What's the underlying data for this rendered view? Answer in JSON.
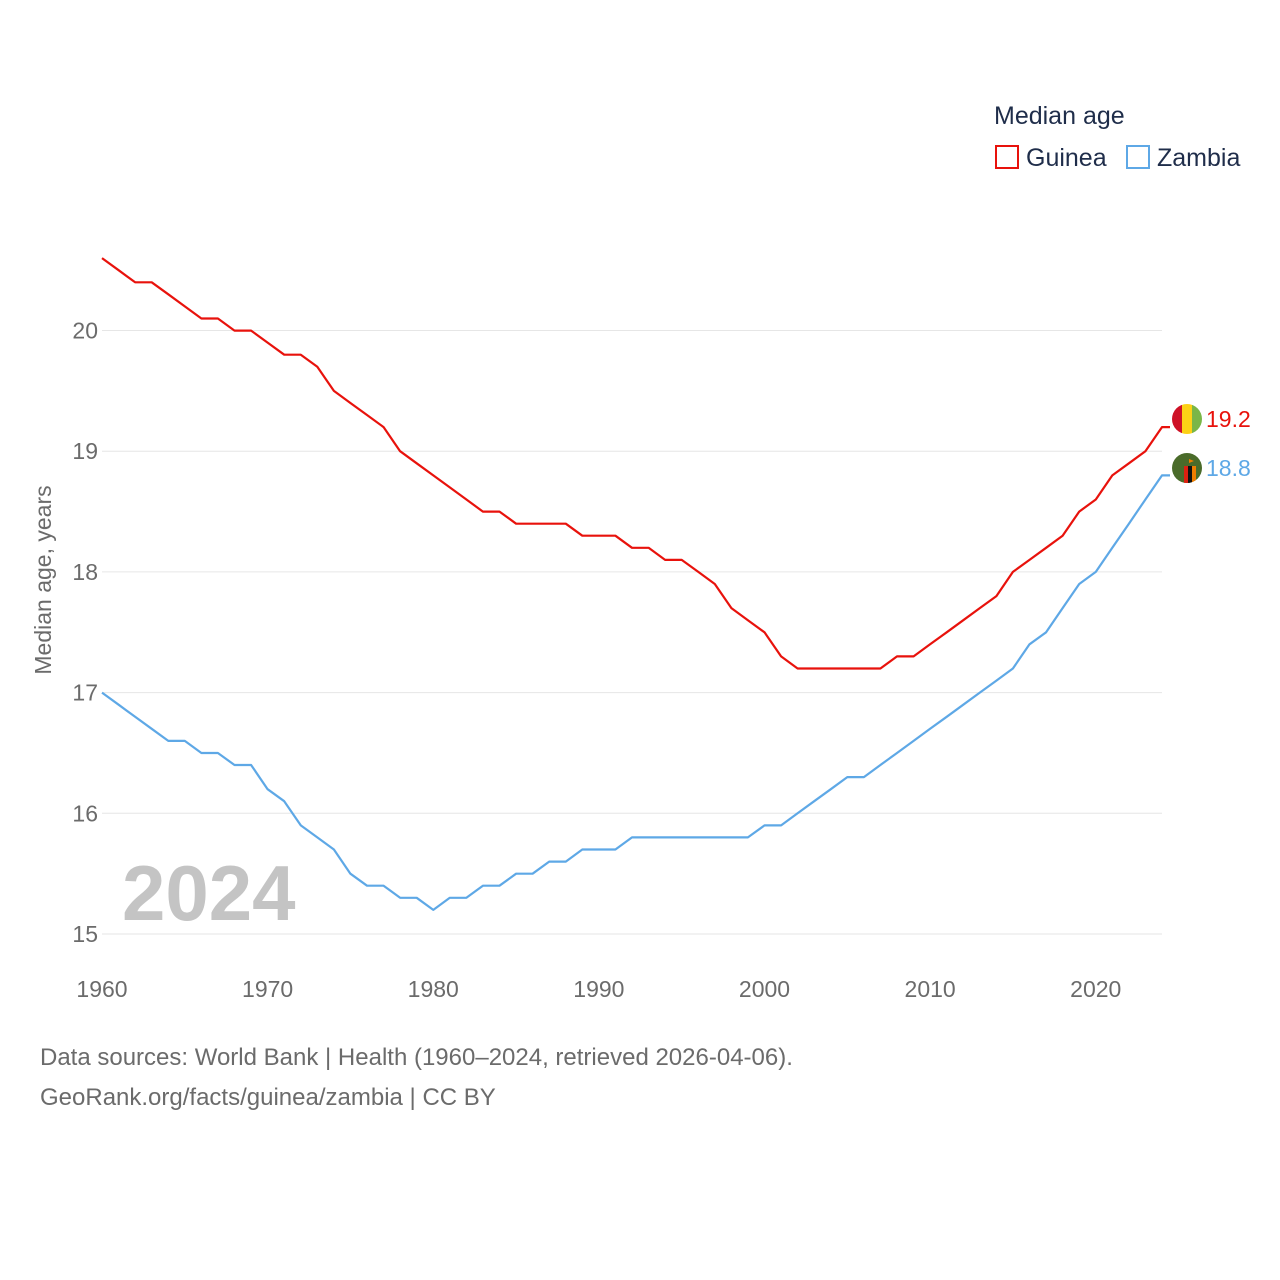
{
  "chart_data": {
    "type": "line",
    "ylabel": "Median age, years",
    "xlabel": "",
    "legend_title": "Median age",
    "legend_position": "top-right",
    "watermark_year": "2024",
    "xlim": [
      1960,
      2024
    ],
    "ylim": [
      15,
      20.8
    ],
    "x_ticks": [
      1960,
      1970,
      1980,
      1990,
      2000,
      2010,
      2020
    ],
    "y_ticks": [
      15,
      16,
      17,
      18,
      19,
      20
    ],
    "x": [
      1960,
      1961,
      1962,
      1963,
      1964,
      1965,
      1966,
      1967,
      1968,
      1969,
      1970,
      1971,
      1972,
      1973,
      1974,
      1975,
      1976,
      1977,
      1978,
      1979,
      1980,
      1981,
      1982,
      1983,
      1984,
      1985,
      1986,
      1987,
      1988,
      1989,
      1990,
      1991,
      1992,
      1993,
      1994,
      1995,
      1996,
      1997,
      1998,
      1999,
      2000,
      2001,
      2002,
      2003,
      2004,
      2005,
      2006,
      2007,
      2008,
      2009,
      2010,
      2011,
      2012,
      2013,
      2014,
      2015,
      2016,
      2017,
      2018,
      2019,
      2020,
      2021,
      2022,
      2023,
      2024
    ],
    "series": [
      {
        "name": "Guinea",
        "color": "#e8120c",
        "end_label": "19.2",
        "flag": "guinea-flag",
        "values": [
          20.6,
          20.5,
          20.4,
          20.4,
          20.3,
          20.2,
          20.1,
          20.1,
          20.0,
          20.0,
          19.9,
          19.8,
          19.8,
          19.7,
          19.5,
          19.4,
          19.3,
          19.2,
          19.0,
          18.9,
          18.8,
          18.7,
          18.6,
          18.5,
          18.5,
          18.4,
          18.4,
          18.4,
          18.4,
          18.3,
          18.3,
          18.3,
          18.2,
          18.2,
          18.1,
          18.1,
          18.0,
          17.9,
          17.7,
          17.6,
          17.5,
          17.3,
          17.2,
          17.2,
          17.2,
          17.2,
          17.2,
          17.2,
          17.3,
          17.3,
          17.4,
          17.5,
          17.6,
          17.7,
          17.8,
          18.0,
          18.1,
          18.2,
          18.3,
          18.5,
          18.6,
          18.8,
          18.9,
          19.0,
          19.2
        ]
      },
      {
        "name": "Zambia",
        "color": "#5ea8e6",
        "end_label": "18.8",
        "flag": "zambia-flag",
        "values": [
          17.0,
          16.9,
          16.8,
          16.7,
          16.6,
          16.6,
          16.5,
          16.5,
          16.4,
          16.4,
          16.2,
          16.1,
          15.9,
          15.8,
          15.7,
          15.5,
          15.4,
          15.4,
          15.3,
          15.3,
          15.2,
          15.3,
          15.3,
          15.4,
          15.4,
          15.5,
          15.5,
          15.6,
          15.6,
          15.7,
          15.7,
          15.7,
          15.8,
          15.8,
          15.8,
          15.8,
          15.8,
          15.8,
          15.8,
          15.8,
          15.9,
          15.9,
          16.0,
          16.1,
          16.2,
          16.3,
          16.3,
          16.4,
          16.5,
          16.6,
          16.7,
          16.8,
          16.9,
          17.0,
          17.1,
          17.2,
          17.4,
          17.5,
          17.7,
          17.9,
          18.0,
          18.2,
          18.4,
          18.6,
          18.8
        ]
      }
    ]
  },
  "footer": {
    "source": "Data sources: World Bank | Health (1960–2024, retrieved 2026-04-06).",
    "credit": "GeoRank.org/facts/guinea/zambia | CC BY"
  }
}
